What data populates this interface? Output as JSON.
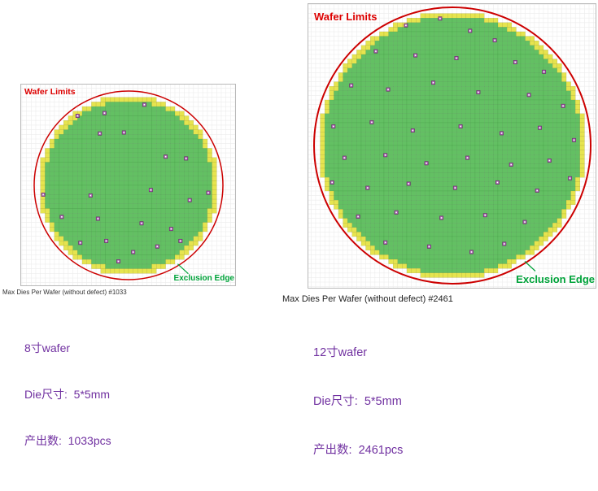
{
  "panels": [
    {
      "wafer_limits_label": "Wafer Limits",
      "exclusion_edge_label": "Exclusion Edge",
      "caption": "Max Dies Per Wafer (without defect) #1033",
      "info": {
        "wafer": "8寸wafer",
        "die_size": "Die尺寸:  5*5mm",
        "output": "产出数:  1033pcs"
      }
    },
    {
      "wafer_limits_label": "Wafer Limits",
      "exclusion_edge_label": "Exclusion Edge",
      "caption": "Max Dies Per Wafer (without defect) #2461",
      "info": {
        "wafer": "12寸wafer",
        "die_size": "Die尺寸:  5*5mm",
        "output": "产出数:  2461pcs"
      }
    }
  ],
  "colors": {
    "info_text": "#7030a0",
    "wafer_limits": "#dd0000",
    "exclusion_edge": "#00a33a",
    "caption": "#333333"
  },
  "chart_data": [
    {
      "type": "heatmap",
      "subtype": "wafer_die_map",
      "title": "Max Dies Per Wafer (without defect) #1033",
      "wafer_size": "8寸",
      "die_size_mm": "5*5",
      "dies_across": 40,
      "max_good_dies": 1033,
      "legend": {
        "good_die": "green cell",
        "edge_exclusion_die": "yellow cell",
        "wafer_limit": "red circle",
        "defect": "purple marker"
      },
      "colors": {
        "good": "#63c063",
        "edge": "#e6e44f",
        "limit": "#cc0000",
        "defect": "#b06ab8",
        "label_green": "#00a33a"
      },
      "defects_norm": [
        [
          -0.55,
          -0.75
        ],
        [
          -0.26,
          -0.78
        ],
        [
          0.17,
          -0.87
        ],
        [
          -0.31,
          -0.56
        ],
        [
          -0.05,
          -0.57
        ],
        [
          0.4,
          -0.31
        ],
        [
          0.62,
          -0.29
        ],
        [
          -0.92,
          0.1
        ],
        [
          -0.41,
          0.11
        ],
        [
          0.24,
          0.05
        ],
        [
          0.66,
          0.16
        ],
        [
          0.86,
          0.08
        ],
        [
          -0.72,
          0.34
        ],
        [
          -0.33,
          0.36
        ],
        [
          0.14,
          0.41
        ],
        [
          0.46,
          0.47
        ],
        [
          -0.52,
          0.62
        ],
        [
          -0.24,
          0.6
        ],
        [
          0.05,
          0.72
        ],
        [
          0.31,
          0.66
        ],
        [
          -0.11,
          0.82
        ],
        [
          0.56,
          0.6
        ]
      ]
    },
    {
      "type": "heatmap",
      "subtype": "wafer_die_map",
      "title": "Max Dies Per Wafer (without defect) #2461",
      "wafer_size": "12寸",
      "die_size_mm": "5*5",
      "dies_across": 60,
      "max_good_dies": 2461,
      "legend": {
        "good_die": "green cell",
        "edge_exclusion_die": "yellow cell",
        "wafer_limit": "red circle",
        "defect": "purple marker"
      },
      "colors": {
        "good": "#63c063",
        "edge": "#e6e44f",
        "limit": "#cc0000",
        "defect": "#b06ab8",
        "label_green": "#00a33a"
      },
      "defects_norm": [
        [
          -0.34,
          -0.88
        ],
        [
          -0.09,
          -0.93
        ],
        [
          0.13,
          -0.84
        ],
        [
          0.31,
          -0.77
        ],
        [
          -0.56,
          -0.69
        ],
        [
          -0.27,
          -0.66
        ],
        [
          0.03,
          -0.64
        ],
        [
          0.46,
          -0.61
        ],
        [
          0.67,
          -0.54
        ],
        [
          -0.74,
          -0.44
        ],
        [
          -0.47,
          -0.41
        ],
        [
          -0.14,
          -0.46
        ],
        [
          0.19,
          -0.39
        ],
        [
          0.56,
          -0.37
        ],
        [
          0.81,
          -0.29
        ],
        [
          -0.87,
          -0.14
        ],
        [
          -0.59,
          -0.17
        ],
        [
          -0.29,
          -0.11
        ],
        [
          0.06,
          -0.14
        ],
        [
          0.36,
          -0.09
        ],
        [
          0.64,
          -0.13
        ],
        [
          0.89,
          -0.04
        ],
        [
          -0.79,
          0.09
        ],
        [
          -0.49,
          0.07
        ],
        [
          -0.19,
          0.13
        ],
        [
          0.11,
          0.09
        ],
        [
          0.43,
          0.14
        ],
        [
          0.71,
          0.11
        ],
        [
          -0.88,
          0.27
        ],
        [
          -0.62,
          0.31
        ],
        [
          -0.32,
          0.28
        ],
        [
          0.02,
          0.31
        ],
        [
          0.33,
          0.27
        ],
        [
          0.62,
          0.33
        ],
        [
          0.86,
          0.24
        ],
        [
          -0.69,
          0.52
        ],
        [
          -0.41,
          0.49
        ],
        [
          -0.08,
          0.53
        ],
        [
          0.24,
          0.51
        ],
        [
          0.53,
          0.56
        ],
        [
          -0.49,
          0.71
        ],
        [
          -0.17,
          0.74
        ],
        [
          0.14,
          0.78
        ],
        [
          0.38,
          0.72
        ]
      ]
    }
  ]
}
